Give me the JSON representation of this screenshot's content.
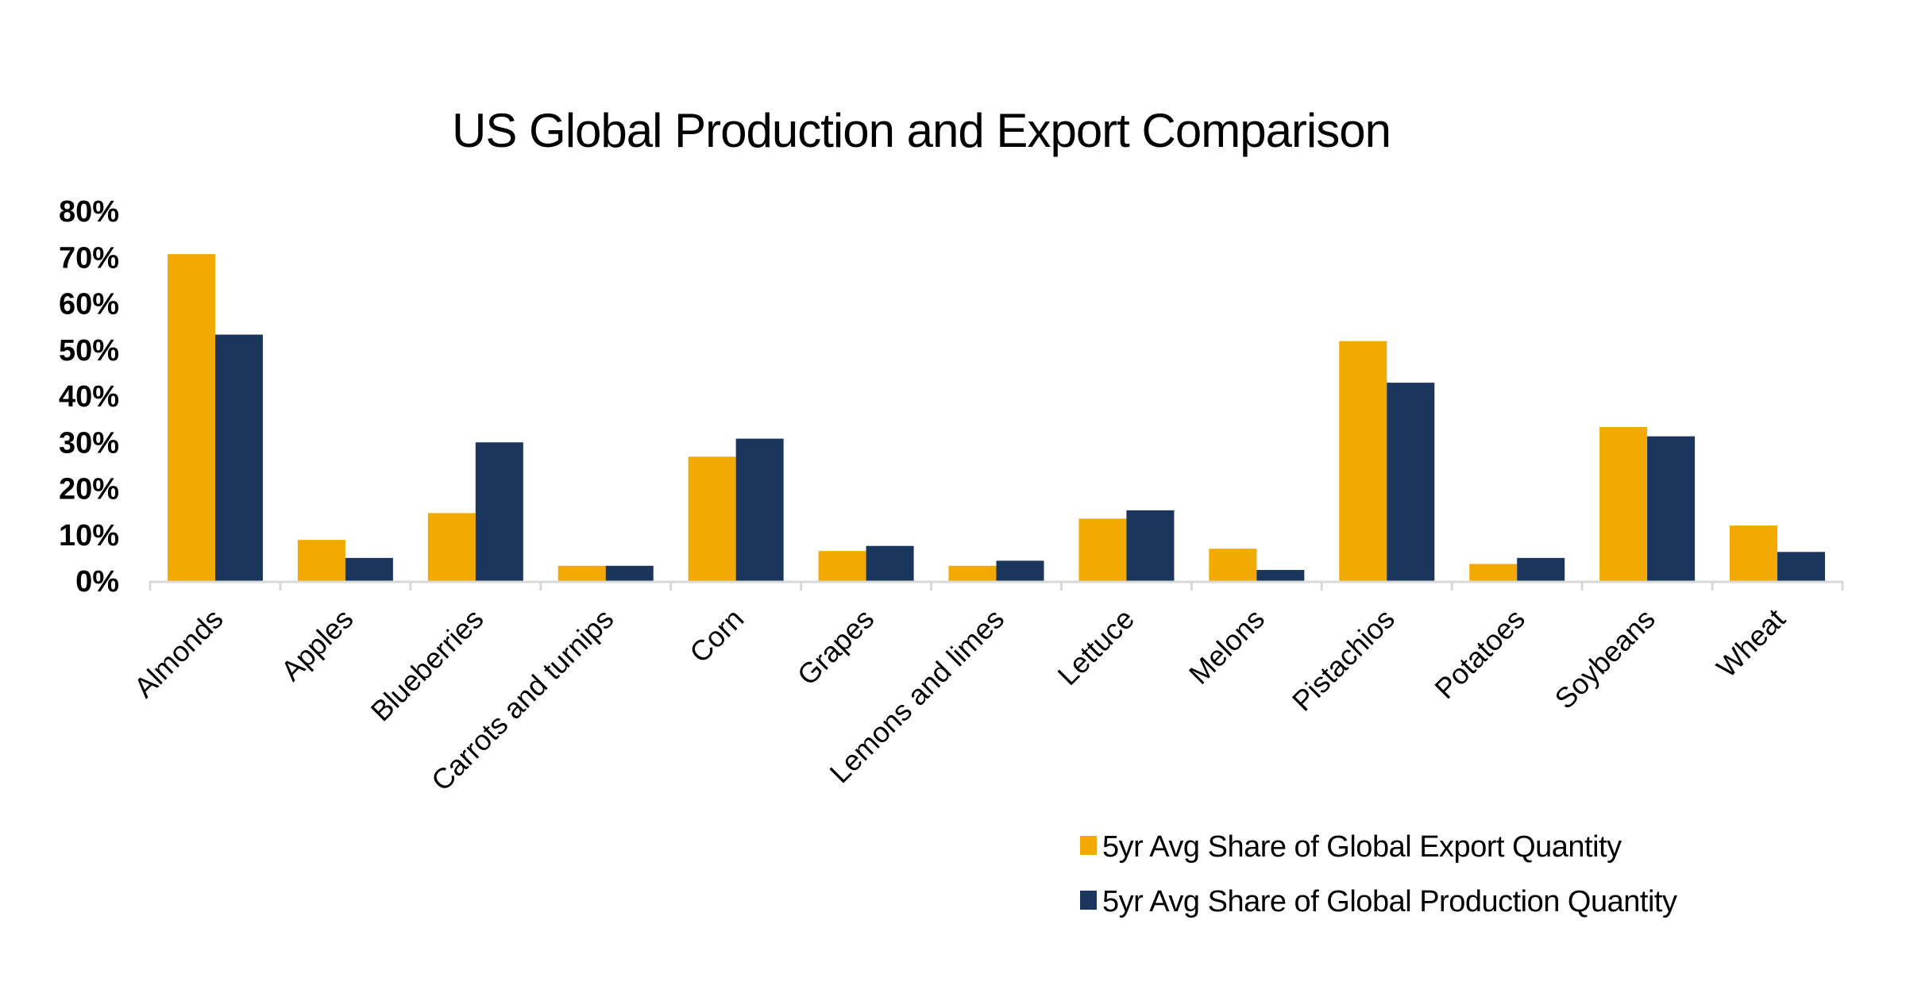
{
  "chart_data": {
    "type": "bar",
    "title": "US Global Production and Export Comparison",
    "xlabel": "",
    "ylabel": "",
    "ylim": [
      0,
      80
    ],
    "yticks": [
      0,
      10,
      20,
      30,
      40,
      50,
      60,
      70,
      80
    ],
    "ytick_labels": [
      "0%",
      "10%",
      "20%",
      "30%",
      "40%",
      "50%",
      "60%",
      "70%",
      "80%"
    ],
    "grid": false,
    "legend_position": "bottom-right",
    "categories": [
      "Almonds",
      "Apples",
      "Blueberries",
      "Carrots and turnips",
      "Corn",
      "Grapes",
      "Lemons and limes",
      "Lettuce",
      "Melons",
      "Pistachios",
      "Potatoes",
      "Soybeans",
      "Wheat"
    ],
    "series": [
      {
        "name": "5yr Avg Share of Global Export Quantity",
        "color": "#F2AA00",
        "values": [
          70.7,
          8.9,
          14.7,
          3.3,
          26.9,
          6.5,
          3.3,
          13.5,
          7.0,
          51.9,
          3.7,
          33.3,
          12.0
        ]
      },
      {
        "name": "5yr Avg Share of Global Production Quantity",
        "color": "#1B365D",
        "values": [
          53.3,
          5.0,
          30.0,
          3.3,
          30.8,
          7.6,
          4.4,
          15.3,
          2.4,
          42.9,
          5.0,
          31.3,
          6.3
        ]
      }
    ],
    "axis_color": "#D9D9D9"
  }
}
